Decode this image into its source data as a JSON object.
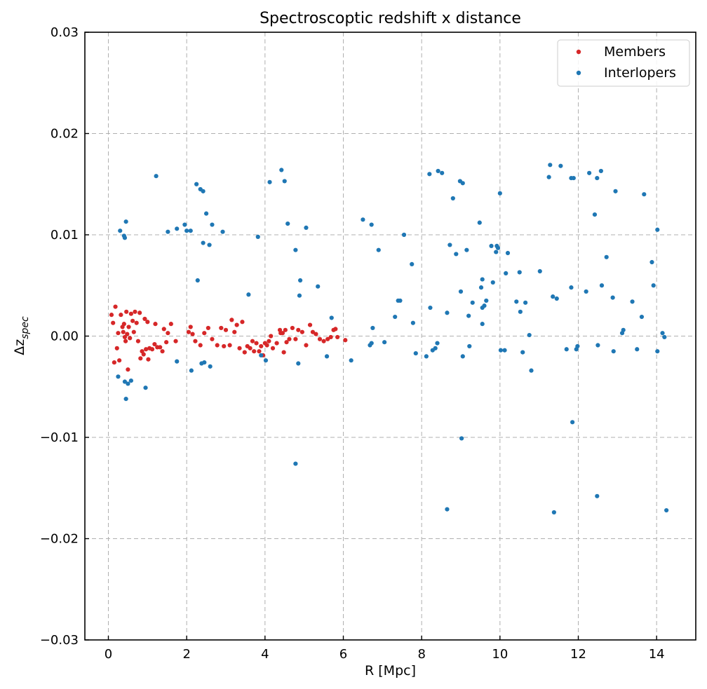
{
  "chart_data": {
    "type": "scatter",
    "title": "Spectroscoptic redshift x distance",
    "xlabel": "R [Mpc]",
    "ylabel_base": "Δz",
    "ylabel_sub": "spec",
    "xlim": [
      -0.6,
      15.0
    ],
    "ylim": [
      -0.03,
      0.03
    ],
    "xticks": [
      0,
      2,
      4,
      6,
      8,
      10,
      12,
      14
    ],
    "yticks": [
      -0.03,
      -0.02,
      -0.01,
      0.0,
      0.01,
      0.02,
      0.03
    ],
    "xtick_labels": [
      "0",
      "2",
      "4",
      "6",
      "8",
      "10",
      "12",
      "14"
    ],
    "ytick_labels": [
      "−0.03",
      "−0.02",
      "−0.01",
      "0.00",
      "0.01",
      "0.02",
      "0.03"
    ],
    "grid": true,
    "legend_position": "top-right",
    "series": [
      {
        "name": "Members",
        "color": "#d62728",
        "points": [
          [
            0.08,
            0.0021
          ],
          [
            0.12,
            0.0013
          ],
          [
            0.15,
            -0.0026
          ],
          [
            0.18,
            0.0029
          ],
          [
            0.22,
            -0.0012
          ],
          [
            0.25,
            0.0003
          ],
          [
            0.28,
            -0.0024
          ],
          [
            0.32,
            0.0021
          ],
          [
            0.36,
            0.0009
          ],
          [
            0.38,
            0.0004
          ],
          [
            0.4,
            0.0012
          ],
          [
            0.42,
            -0.0001
          ],
          [
            0.44,
            -0.0005
          ],
          [
            0.46,
            0.0024
          ],
          [
            0.48,
            0.0002
          ],
          [
            0.5,
            -0.0033
          ],
          [
            0.52,
            0.0009
          ],
          [
            0.55,
            -0.0002
          ],
          [
            0.58,
            0.0022
          ],
          [
            0.62,
            0.0015
          ],
          [
            0.65,
            0.0004
          ],
          [
            0.68,
            0.0024
          ],
          [
            0.72,
            0.0013
          ],
          [
            0.76,
            -0.0005
          ],
          [
            0.8,
            0.0023
          ],
          [
            0.82,
            -0.0022
          ],
          [
            0.86,
            -0.0015
          ],
          [
            0.9,
            -0.0018
          ],
          [
            0.93,
            0.0017
          ],
          [
            0.96,
            -0.0013
          ],
          [
            1.0,
            0.0014
          ],
          [
            1.02,
            -0.0023
          ],
          [
            1.05,
            -0.0012
          ],
          [
            1.12,
            -0.0013
          ],
          [
            1.18,
            -0.0008
          ],
          [
            1.2,
            0.0012
          ],
          [
            1.25,
            -0.0011
          ],
          [
            1.32,
            -0.0011
          ],
          [
            1.38,
            -0.0015
          ],
          [
            1.42,
            0.0007
          ],
          [
            1.48,
            -0.0006
          ],
          [
            1.52,
            0.0003
          ],
          [
            1.6,
            0.0012
          ],
          [
            1.72,
            -0.0005
          ],
          [
            2.05,
            0.0004
          ],
          [
            2.1,
            0.0009
          ],
          [
            2.15,
            0.0002
          ],
          [
            2.22,
            -0.0005
          ],
          [
            2.35,
            -0.0009
          ],
          [
            2.45,
            0.0003
          ],
          [
            2.55,
            0.0008
          ],
          [
            2.65,
            -0.0003
          ],
          [
            2.78,
            -0.0009
          ],
          [
            2.88,
            0.0008
          ],
          [
            2.95,
            -0.001
          ],
          [
            3.0,
            0.0006
          ],
          [
            3.1,
            -0.0009
          ],
          [
            3.15,
            0.0016
          ],
          [
            3.22,
            0.0004
          ],
          [
            3.28,
            0.0011
          ],
          [
            3.35,
            -0.0012
          ],
          [
            3.42,
            0.0014
          ],
          [
            3.48,
            -0.0016
          ],
          [
            3.55,
            -0.001
          ],
          [
            3.62,
            -0.0012
          ],
          [
            3.68,
            -0.0005
          ],
          [
            3.72,
            -0.0015
          ],
          [
            3.78,
            -0.0007
          ],
          [
            3.85,
            -0.0015
          ],
          [
            3.9,
            -0.001
          ],
          [
            3.95,
            -0.0019
          ],
          [
            4.0,
            -0.0007
          ],
          [
            4.05,
            -0.0009
          ],
          [
            4.1,
            -0.0005
          ],
          [
            4.15,
            0.0
          ],
          [
            4.2,
            -0.0012
          ],
          [
            4.3,
            -0.0007
          ],
          [
            4.38,
            0.0006
          ],
          [
            4.4,
            0.0003
          ],
          [
            4.45,
            0.0003
          ],
          [
            4.48,
            -0.0016
          ],
          [
            4.52,
            0.0006
          ],
          [
            4.55,
            -0.0006
          ],
          [
            4.62,
            -0.0003
          ],
          [
            4.7,
            0.0008
          ],
          [
            4.78,
            -0.0003
          ],
          [
            4.85,
            0.0006
          ],
          [
            4.95,
            0.0004
          ],
          [
            5.05,
            -0.0009
          ],
          [
            5.15,
            0.0011
          ],
          [
            5.22,
            0.0004
          ],
          [
            5.3,
            0.0002
          ],
          [
            5.4,
            -0.0003
          ],
          [
            5.5,
            -0.0005
          ],
          [
            5.6,
            -0.0003
          ],
          [
            5.68,
            -0.0001
          ],
          [
            5.75,
            0.0006
          ],
          [
            5.8,
            0.0007
          ],
          [
            5.85,
            -0.0001
          ],
          [
            6.05,
            -0.0004
          ]
        ]
      },
      {
        "name": "Interlopers",
        "color": "#1f77b4",
        "points": [
          [
            0.25,
            -0.004
          ],
          [
            0.3,
            0.0104
          ],
          [
            0.4,
            0.0099
          ],
          [
            0.42,
            0.0097
          ],
          [
            0.45,
            0.0113
          ],
          [
            0.42,
            -0.0045
          ],
          [
            0.45,
            -0.0062
          ],
          [
            0.5,
            -0.0047
          ],
          [
            0.58,
            -0.0044
          ],
          [
            0.95,
            -0.0051
          ],
          [
            1.22,
            0.0158
          ],
          [
            1.52,
            0.0103
          ],
          [
            1.75,
            0.0106
          ],
          [
            1.75,
            -0.0025
          ],
          [
            1.95,
            0.011
          ],
          [
            2.0,
            0.0104
          ],
          [
            2.1,
            0.0104
          ],
          [
            2.12,
            -0.0034
          ],
          [
            2.25,
            0.015
          ],
          [
            2.28,
            0.0055
          ],
          [
            2.35,
            0.0145
          ],
          [
            2.38,
            -0.0027
          ],
          [
            2.42,
            0.0143
          ],
          [
            2.42,
            0.0092
          ],
          [
            2.45,
            -0.0026
          ],
          [
            2.5,
            0.0121
          ],
          [
            2.58,
            0.009
          ],
          [
            2.6,
            -0.003
          ],
          [
            2.65,
            0.011
          ],
          [
            2.92,
            0.0103
          ],
          [
            3.58,
            0.0041
          ],
          [
            3.82,
            0.0098
          ],
          [
            3.9,
            -0.0019
          ],
          [
            4.02,
            -0.0024
          ],
          [
            4.12,
            0.0152
          ],
          [
            4.42,
            0.0164
          ],
          [
            4.5,
            0.0153
          ],
          [
            4.58,
            0.0111
          ],
          [
            4.78,
            0.0085
          ],
          [
            4.78,
            -0.0126
          ],
          [
            4.85,
            -0.0027
          ],
          [
            4.88,
            0.004
          ],
          [
            4.9,
            0.0055
          ],
          [
            5.05,
            0.0107
          ],
          [
            5.35,
            0.0049
          ],
          [
            5.58,
            -0.002
          ],
          [
            5.7,
            0.0018
          ],
          [
            6.2,
            -0.0024
          ],
          [
            6.5,
            0.0115
          ],
          [
            6.68,
            -0.0009
          ],
          [
            6.72,
            0.011
          ],
          [
            6.75,
            0.0008
          ],
          [
            6.72,
            -0.0007
          ],
          [
            6.9,
            0.0085
          ],
          [
            7.05,
            -0.0006
          ],
          [
            7.32,
            0.0019
          ],
          [
            7.4,
            0.0035
          ],
          [
            7.45,
            0.0035
          ],
          [
            7.55,
            0.01
          ],
          [
            7.75,
            0.0071
          ],
          [
            7.78,
            0.0013
          ],
          [
            7.85,
            -0.0017
          ],
          [
            8.12,
            -0.002
          ],
          [
            8.2,
            0.016
          ],
          [
            8.22,
            0.0028
          ],
          [
            8.28,
            -0.0014
          ],
          [
            8.35,
            -0.0012
          ],
          [
            8.4,
            -0.0007
          ],
          [
            8.42,
            0.0163
          ],
          [
            8.52,
            0.0161
          ],
          [
            8.65,
            0.0023
          ],
          [
            8.65,
            -0.0171
          ],
          [
            8.72,
            0.009
          ],
          [
            8.8,
            0.0136
          ],
          [
            8.88,
            0.0081
          ],
          [
            8.98,
            0.0153
          ],
          [
            9.0,
            0.0044
          ],
          [
            9.02,
            -0.0101
          ],
          [
            9.05,
            0.0151
          ],
          [
            9.05,
            -0.002
          ],
          [
            9.15,
            0.0085
          ],
          [
            9.2,
            0.002
          ],
          [
            9.22,
            -0.001
          ],
          [
            9.3,
            0.0033
          ],
          [
            9.48,
            0.0112
          ],
          [
            9.52,
            0.0048
          ],
          [
            9.55,
            0.0056
          ],
          [
            9.55,
            0.0028
          ],
          [
            9.55,
            0.0012
          ],
          [
            9.6,
            0.003
          ],
          [
            9.65,
            0.0035
          ],
          [
            9.78,
            0.0089
          ],
          [
            9.82,
            0.0053
          ],
          [
            9.9,
            0.0083
          ],
          [
            9.92,
            0.0089
          ],
          [
            9.95,
            0.0087
          ],
          [
            10.0,
            0.0141
          ],
          [
            10.02,
            -0.0014
          ],
          [
            10.12,
            -0.0014
          ],
          [
            10.15,
            0.0062
          ],
          [
            10.2,
            0.0082
          ],
          [
            10.42,
            0.0034
          ],
          [
            10.5,
            0.0063
          ],
          [
            10.52,
            0.0024
          ],
          [
            10.58,
            -0.0016
          ],
          [
            10.65,
            0.0033
          ],
          [
            10.75,
            0.0001
          ],
          [
            10.8,
            -0.0034
          ],
          [
            11.02,
            0.0064
          ],
          [
            11.25,
            0.0157
          ],
          [
            11.28,
            0.0169
          ],
          [
            11.35,
            0.0039
          ],
          [
            11.38,
            -0.0174
          ],
          [
            11.45,
            0.0037
          ],
          [
            11.55,
            0.0168
          ],
          [
            11.7,
            -0.0013
          ],
          [
            11.82,
            0.0156
          ],
          [
            11.82,
            0.0048
          ],
          [
            11.85,
            -0.0085
          ],
          [
            11.88,
            0.0156
          ],
          [
            11.95,
            -0.0013
          ],
          [
            11.98,
            -0.001
          ],
          [
            12.2,
            0.0044
          ],
          [
            12.28,
            0.0161
          ],
          [
            12.42,
            0.012
          ],
          [
            12.48,
            0.0156
          ],
          [
            12.48,
            -0.0158
          ],
          [
            12.5,
            -0.0009
          ],
          [
            12.58,
            0.0163
          ],
          [
            12.6,
            0.005
          ],
          [
            12.72,
            0.0078
          ],
          [
            12.88,
            0.0038
          ],
          [
            12.9,
            -0.0015
          ],
          [
            12.95,
            0.0143
          ],
          [
            13.12,
            0.0003
          ],
          [
            13.15,
            0.0006
          ],
          [
            13.38,
            0.0034
          ],
          [
            13.5,
            -0.0013
          ],
          [
            13.62,
            0.0019
          ],
          [
            13.68,
            0.014
          ],
          [
            13.88,
            0.0073
          ],
          [
            13.92,
            0.005
          ],
          [
            14.02,
            0.0105
          ],
          [
            14.02,
            -0.0015
          ],
          [
            14.15,
            0.0003
          ],
          [
            14.2,
            -0.0001
          ],
          [
            14.25,
            -0.0172
          ]
        ]
      }
    ]
  }
}
